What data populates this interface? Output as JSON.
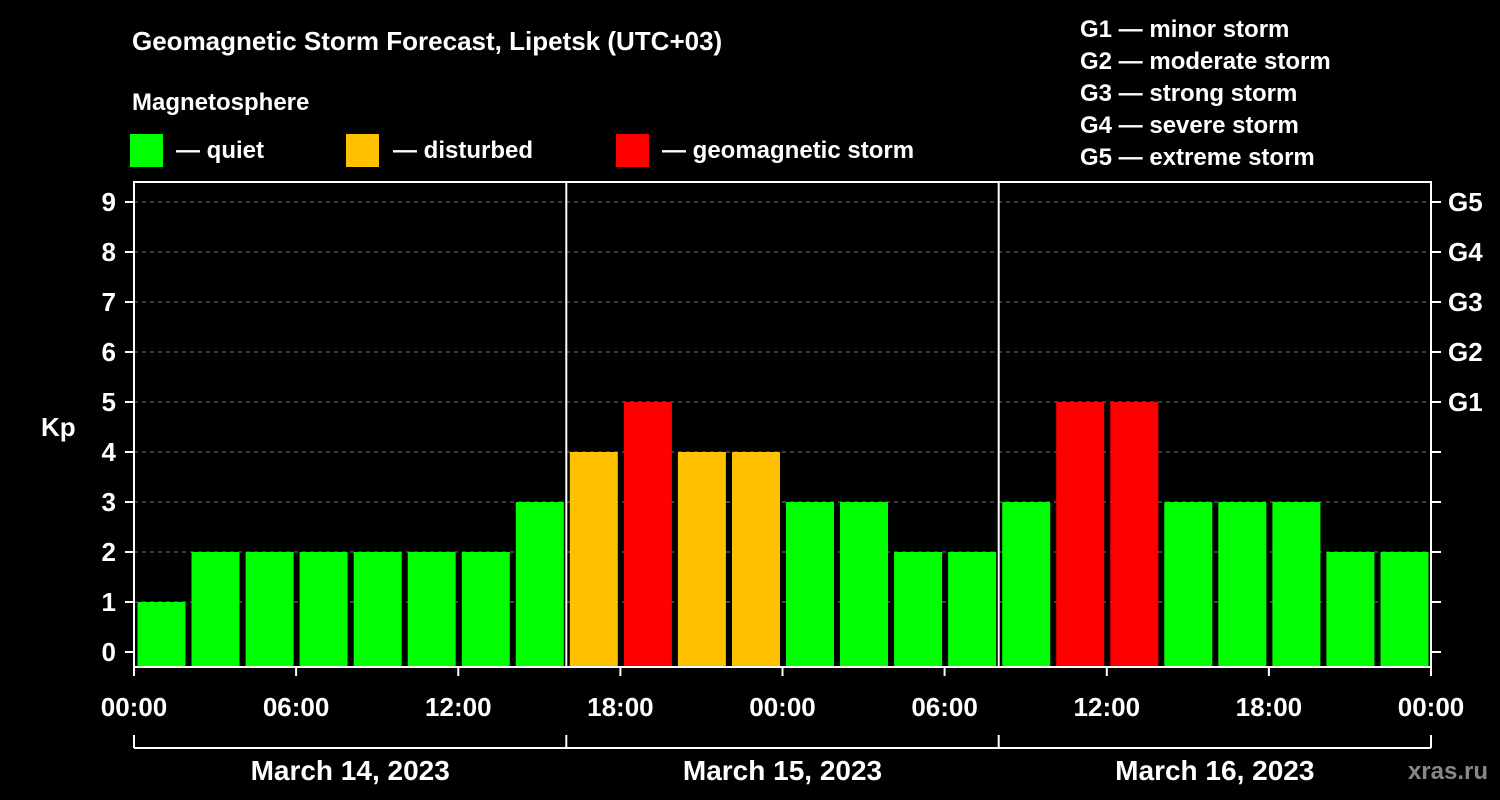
{
  "header": {
    "title": "Geomagnetic Storm Forecast, Lipetsk (UTC+03)",
    "section_label": "Magnetosphere"
  },
  "legend": [
    {
      "label": "— quiet",
      "color": "#00ff00"
    },
    {
      "label": "— disturbed",
      "color": "#ffc000"
    },
    {
      "label": "— geomagnetic storm",
      "color": "#ff0000"
    }
  ],
  "storm_scale": [
    {
      "level": "G1",
      "text": "G1 — minor storm"
    },
    {
      "level": "G2",
      "text": "G2 — moderate storm"
    },
    {
      "level": "G3",
      "text": "G3 — strong storm"
    },
    {
      "level": "G4",
      "text": "G4 — severe storm"
    },
    {
      "level": "G5",
      "text": "G5 — extreme storm"
    }
  ],
  "watermark": "xras.ru",
  "chart_data": {
    "type": "bar",
    "ylabel": "Kp",
    "ylim": [
      0,
      9
    ],
    "y_ticks": [
      "0",
      "1",
      "2",
      "3",
      "4",
      "5",
      "6",
      "7",
      "8",
      "9"
    ],
    "right_ticks": [
      {
        "value": 5,
        "label": "G1"
      },
      {
        "value": 6,
        "label": "G2"
      },
      {
        "value": 7,
        "label": "G3"
      },
      {
        "value": 8,
        "label": "G4"
      },
      {
        "value": 9,
        "label": "G5"
      }
    ],
    "grid": "horizontal dashed",
    "x_tick_labels": [
      "00:00",
      "06:00",
      "12:00",
      "18:00",
      "00:00",
      "06:00",
      "12:00",
      "18:00",
      "00:00",
      "06:00",
      "12:00",
      "18:00",
      "00:00"
    ],
    "days": [
      "March 14, 2023",
      "March 15, 2023",
      "March 16, 2023"
    ],
    "values": [
      1,
      2,
      2,
      2,
      2,
      2,
      2,
      3,
      4,
      5,
      4,
      4,
      3,
      3,
      2,
      2,
      3,
      5,
      5,
      3,
      3,
      3,
      2,
      2
    ],
    "colors": {
      "quiet": "#00ff00",
      "disturbed": "#ffc000",
      "storm": "#ff0000"
    }
  }
}
